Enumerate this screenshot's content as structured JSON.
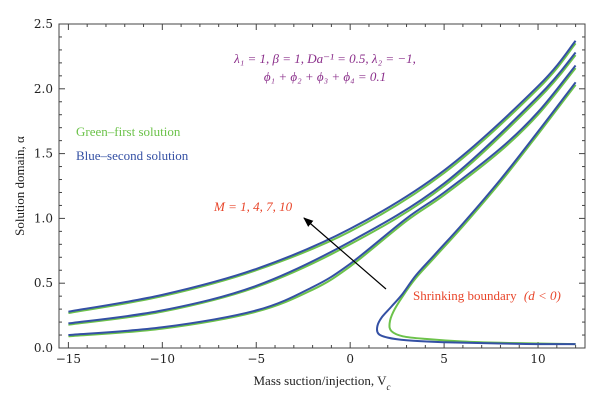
{
  "chart_data": {
    "type": "line",
    "xlabel": "Mass suction/injection, V",
    "xlabel_sub": "c",
    "ylabel": "Solution domain, α",
    "xlim": [
      -15.5,
      12.5
    ],
    "ylim": [
      0.0,
      2.5
    ],
    "xticks": [
      -15,
      -10,
      -5,
      0,
      5,
      10
    ],
    "xtick_labels": [
      "−15",
      "−10",
      "−5",
      "0",
      "5",
      "10"
    ],
    "yticks": [
      0.0,
      0.5,
      1.0,
      1.5,
      2.0,
      2.5
    ],
    "ytick_labels": [
      "0.0",
      "0.5",
      "1.0",
      "1.5",
      "2.0",
      "2.5"
    ],
    "grid": false,
    "colors": {
      "first": "#6cc24a",
      "second": "#3450a4",
      "annotation": "#e8452a",
      "params": "#8b2f8b",
      "arrow": "#000000"
    },
    "params_text": {
      "line1": "λ₁ = 1, β = 1, Da⁻¹ = 0.5, λ₂ = −1,",
      "line2": "ϕ₁ + ϕ₂ + ϕ₃ + ϕ₄ = 0.1"
    },
    "legend": {
      "first": "Green–first solution",
      "second": "Blue–second solution",
      "placement": "upper-left"
    },
    "annotations": {
      "m_label": "M = 1, 4, 7, 10",
      "shrinking_label": "Shrinking boundary",
      "shrinking_cond": "(d < 0)"
    },
    "series": [
      {
        "role": "first",
        "x": [
          -15,
          -10,
          -5,
          0,
          5,
          10,
          12
        ],
        "y": [
          0.27,
          0.4,
          0.6,
          0.9,
          1.35,
          2.0,
          2.35
        ]
      },
      {
        "role": "second",
        "x": [
          -15,
          -10,
          -5,
          0,
          5,
          10,
          12
        ],
        "y": [
          0.28,
          0.41,
          0.61,
          0.92,
          1.37,
          2.02,
          2.37
        ]
      },
      {
        "role": "first",
        "x": [
          -15,
          -10,
          -5,
          0,
          5,
          10,
          12
        ],
        "y": [
          0.18,
          0.28,
          0.47,
          0.8,
          1.25,
          1.92,
          2.26
        ]
      },
      {
        "role": "second",
        "x": [
          -15,
          -10,
          -5,
          0,
          5,
          10,
          12
        ],
        "y": [
          0.19,
          0.29,
          0.48,
          0.82,
          1.27,
          1.94,
          2.28
        ]
      },
      {
        "role": "first",
        "x": [
          -15,
          -10,
          -5,
          -2,
          0,
          3,
          5,
          8,
          10,
          12
        ],
        "y": [
          0.09,
          0.15,
          0.28,
          0.45,
          0.63,
          0.98,
          1.18,
          1.52,
          1.8,
          2.16
        ]
      },
      {
        "role": "second",
        "x": [
          -15,
          -10,
          -5,
          -2,
          0,
          3,
          5,
          8,
          10,
          12
        ],
        "y": [
          0.1,
          0.16,
          0.29,
          0.47,
          0.65,
          1.0,
          1.2,
          1.54,
          1.82,
          2.18
        ]
      },
      {
        "role": "first",
        "x": [
          12,
          10,
          8,
          6,
          4.5,
          3.5,
          2.8,
          2.3,
          2.1,
          2.2,
          2.8,
          4.0,
          6.0,
          8.0,
          10.0,
          12.0
        ],
        "y": [
          2.03,
          1.65,
          1.28,
          0.94,
          0.7,
          0.54,
          0.4,
          0.28,
          0.19,
          0.13,
          0.09,
          0.07,
          0.05,
          0.04,
          0.035,
          0.03
        ]
      },
      {
        "role": "second",
        "x": [
          12,
          10,
          8,
          6,
          4.5,
          3.5,
          2.8,
          2.2,
          1.7,
          1.45,
          1.5,
          2.0,
          3.0,
          5.0,
          8.0,
          10.0,
          12.0
        ],
        "y": [
          2.05,
          1.67,
          1.3,
          0.96,
          0.72,
          0.56,
          0.42,
          0.32,
          0.24,
          0.17,
          0.11,
          0.08,
          0.06,
          0.045,
          0.035,
          0.03,
          0.03
        ]
      }
    ]
  }
}
